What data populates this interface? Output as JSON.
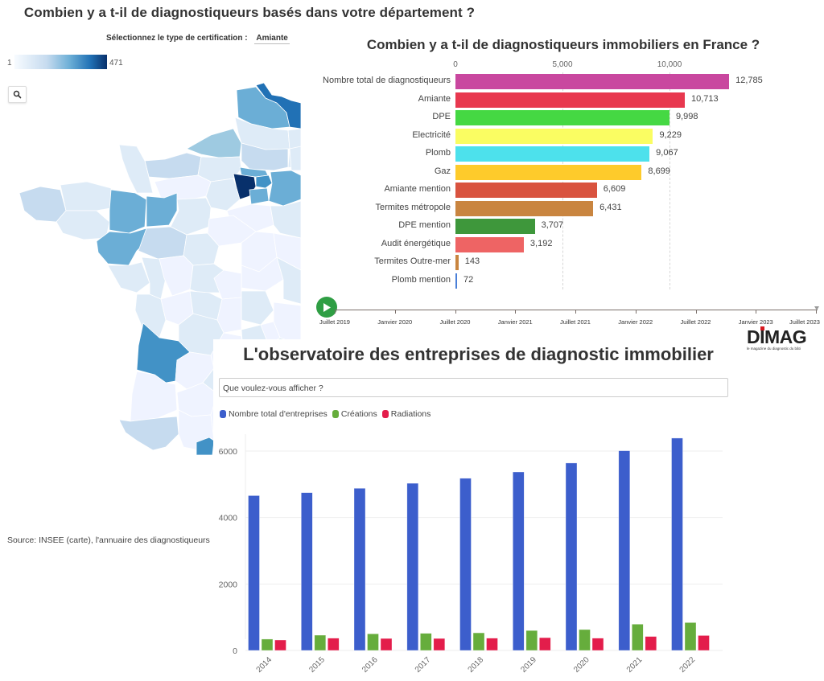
{
  "map_panel": {
    "title": "Combien y a t-il de diagnostiqueurs basés dans votre département ?",
    "selector_label": "Sélectionnez le type de certification :",
    "selector_value": "Amiante",
    "legend_min": "1",
    "legend_max": "471",
    "search_icon": "magnifier",
    "source": "Source: INSEE (carte), l'annuaire des diagnostiqueurs",
    "colors": [
      "#f7fbff",
      "#deebf7",
      "#c6dbef",
      "#9ecae1",
      "#6baed6",
      "#4292c6",
      "#2171b5",
      "#08306b"
    ]
  },
  "chart_data": [
    {
      "type": "bar",
      "orientation": "horizontal",
      "title": "Combien y a t-il de diagnostiqueurs immobiliers en France ?",
      "xlim": [
        0,
        13000
      ],
      "xticks": [
        "0",
        "5,000",
        "10,000"
      ],
      "xtick_values": [
        0,
        5000,
        10000
      ],
      "categories": [
        "Nombre total de diagnostiqueurs",
        "Amiante",
        "DPE",
        "Electricité",
        "Plomb",
        "Gaz",
        "Amiante mention",
        "Termites métropole",
        "DPE mention",
        "Audit énergétique",
        "Termites Outre-mer",
        "Plomb mention"
      ],
      "values": [
        12785,
        10713,
        9998,
        9229,
        9067,
        8699,
        6609,
        6431,
        3707,
        3192,
        143,
        72
      ],
      "value_labels": [
        "12,785",
        "10,713",
        "9,998",
        "9,229",
        "9,067",
        "8,699",
        "6,609",
        "6,431",
        "3,707",
        "3,192",
        "143",
        "72"
      ],
      "colors": [
        "#c9479f",
        "#e8384f",
        "#45d843",
        "#fafd62",
        "#4de1ec",
        "#fecb2b",
        "#d9533f",
        "#c98540",
        "#3e973b",
        "#ee6464",
        "#c98540",
        "#4a7fd8"
      ],
      "timeline": {
        "play_icon": "play",
        "labels": [
          "Juillet 2019",
          "Janvier 2020",
          "Juillet 2020",
          "Janvier 2021",
          "Juillet 2021",
          "Janvier 2022",
          "Juillet 2022",
          "Janvier 2023",
          "Juillet 2023"
        ]
      }
    },
    {
      "type": "bar",
      "orientation": "vertical",
      "title": "L'observatoire des entreprises de diagnostic immobilier",
      "categories": [
        "2014",
        "2015",
        "2016",
        "2017",
        "2018",
        "2019",
        "2020",
        "2021",
        "2022"
      ],
      "ylim": [
        0,
        6500
      ],
      "yticks": [
        "0",
        "2000",
        "4000",
        "6000"
      ],
      "ytick_values": [
        0,
        2000,
        4000,
        6000
      ],
      "grid": true,
      "legend_position": "top-left",
      "series": [
        {
          "name": "Nombre total d'entreprises",
          "color": "#3c5ecc",
          "values": [
            4660,
            4750,
            4880,
            5030,
            5180,
            5370,
            5640,
            6010,
            6390
          ]
        },
        {
          "name": "Créations",
          "color": "#66ad3c",
          "values": [
            340,
            460,
            500,
            515,
            530,
            600,
            630,
            790,
            840
          ]
        },
        {
          "name": "Radiations",
          "color": "#e31d4b",
          "values": [
            315,
            370,
            360,
            360,
            370,
            385,
            370,
            420,
            450
          ]
        }
      ]
    }
  ],
  "observatoire": {
    "select_placeholder": "Que voulez-vous afficher ?"
  },
  "logo": {
    "word": "DIMAG",
    "tagline": "le magazine du diagnostic du bâti",
    "accent": "#d71920"
  }
}
